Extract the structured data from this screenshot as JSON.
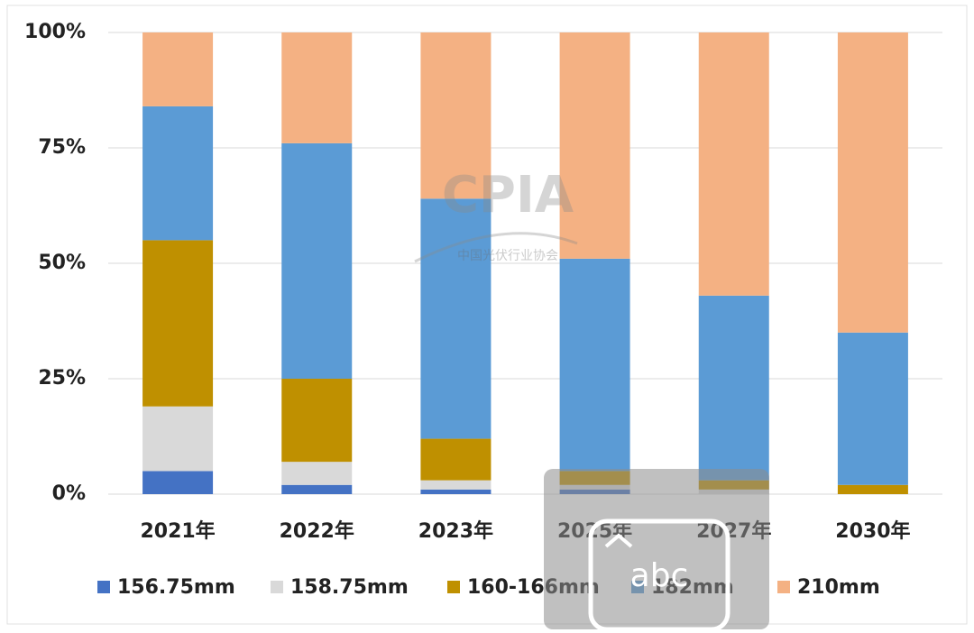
{
  "chart_data": {
    "type": "stacked_bar",
    "categories": [
      "2021年",
      "2022年",
      "2023年",
      "2025年",
      "2027年",
      "2030年"
    ],
    "series": [
      {
        "name": "156.75mm",
        "color": "#4472c4",
        "values": [
          5,
          2,
          1,
          1,
          0,
          0
        ]
      },
      {
        "name": "158.75mm",
        "color": "#d9d9d9",
        "values": [
          14,
          5,
          2,
          1,
          1,
          0
        ]
      },
      {
        "name": "160-166mm",
        "color": "#bf9000",
        "values": [
          36,
          18,
          9,
          3,
          2,
          2
        ]
      },
      {
        "name": "182mm",
        "color": "#5b9bd5",
        "values": [
          29,
          51,
          52,
          46,
          40,
          33
        ]
      },
      {
        "name": "210mm",
        "color": "#f4b183",
        "values": [
          16,
          24,
          36,
          49,
          57,
          65
        ]
      }
    ],
    "ylim": [
      0,
      100
    ],
    "yticks": [
      {
        "value": 0,
        "label": "0%"
      },
      {
        "value": 25,
        "label": "25%"
      },
      {
        "value": 50,
        "label": "50%"
      },
      {
        "value": 75,
        "label": "75%"
      },
      {
        "value": 100,
        "label": "100%"
      }
    ],
    "grid": true,
    "legend": "bottom",
    "watermark": {
      "title": "CPIA",
      "subtitle": "中国光伏行业协会"
    },
    "overlay_text": "abc"
  }
}
